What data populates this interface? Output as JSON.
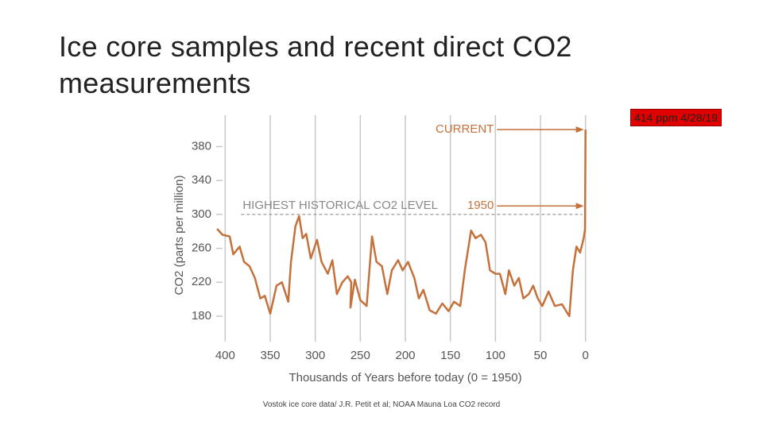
{
  "chart_data": {
    "type": "line",
    "title": "Ice core samples and recent direct CO2 measurements",
    "badge": "414 ppm 4/28/19",
    "caption": "Vostok ice core data/ J.R. Petit et al; NOAA Mauna Loa CO2 record",
    "x_label": "Thousands of Years before today (0 = 1950)",
    "y_label": "CO2 (parts per million)",
    "color": "#c4713b",
    "xlim": [
      410,
      -10
    ],
    "xticks": [
      400,
      350,
      300,
      250,
      200,
      150,
      100,
      50,
      0
    ],
    "ylim": [
      150,
      417
    ],
    "yticks": [
      180,
      220,
      260,
      300,
      340,
      380
    ],
    "grid": true,
    "reference_line": {
      "value": 300,
      "label": "HIGHEST HISTORICAL CO2 LEVEL"
    },
    "annotations": [
      {
        "text": "CURRENT",
        "y": 400
      },
      {
        "text": "1950",
        "y": 310
      }
    ],
    "x": [
      409,
      403,
      395,
      391,
      384,
      379,
      373,
      367,
      361,
      356,
      350,
      343,
      337,
      330,
      327,
      322,
      318,
      314,
      310,
      305,
      298,
      293,
      286,
      281,
      276,
      270,
      264,
      260,
      261,
      256,
      250,
      243,
      237,
      232,
      226,
      220,
      215,
      208,
      203,
      197,
      190,
      185,
      180,
      173,
      166,
      159,
      152,
      146,
      139,
      134,
      127,
      122,
      116,
      111,
      106,
      100,
      95,
      89,
      85,
      79,
      74,
      69,
      63,
      58,
      53,
      48,
      41,
      34,
      26,
      21,
      18,
      14,
      10,
      6,
      2,
      0.5,
      0
    ],
    "values": [
      283,
      276,
      274,
      253,
      262,
      244,
      239,
      225,
      201,
      204,
      183,
      216,
      220,
      197,
      244,
      286,
      298,
      272,
      277,
      248,
      270,
      244,
      230,
      246,
      206,
      220,
      227,
      220,
      190,
      223,
      199,
      192,
      274,
      244,
      239,
      206,
      234,
      246,
      234,
      244,
      225,
      201,
      211,
      187,
      183,
      195,
      186,
      197,
      192,
      234,
      281,
      272,
      276,
      267,
      234,
      230,
      230,
      206,
      234,
      216,
      225,
      201,
      206,
      216,
      201,
      192,
      209,
      192,
      194,
      185,
      180,
      234,
      262,
      255,
      272,
      283,
      400
    ]
  }
}
